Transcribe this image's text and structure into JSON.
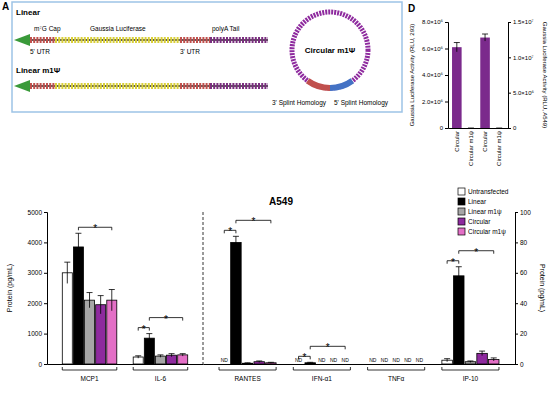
{
  "diagram": {
    "panel": "A",
    "linear_label": "Linear",
    "linear_m1psi_label": "Linear m1Ψ",
    "circular_label": "Circular m1Ψ",
    "cap": "m⁷G Cap",
    "luciferase": "Gaussia Luciferase",
    "polya": "polyA Tail",
    "utr5": "5' UTR",
    "utr3": "3' UTR",
    "splint3": "3' Splint Homology",
    "splint5": "5' Splint Homology"
  },
  "chart_data": [
    {
      "type": "bar",
      "title": "D",
      "categories": [
        "Circular",
        "Circular m1ψ",
        "Circular",
        "Circular m1ψ"
      ],
      "y_label": "Gaussia Luciferase Activity (RLU, 293)",
      "y2_label": "Gaussia Luciferase Activity (RLU, A549)",
      "ylim": [
        0,
        8000000
      ],
      "yticks": [
        0,
        {
          "value": 2000000,
          "label": "2.0×10⁶"
        },
        {
          "value": 4000000,
          "label": "4.0×10⁶"
        },
        {
          "value": 6000000,
          "label": "6.0×10⁶"
        },
        {
          "value": 8000000,
          "label": "8.0×10⁶"
        }
      ],
      "y2lim": [
        0,
        15000000
      ],
      "y2ticks": [
        0,
        {
          "value": 5000000,
          "label": "5.0×10⁶"
        },
        {
          "value": 10000000,
          "label": "1.0×10⁷"
        },
        {
          "value": 15000000,
          "label": "1.5×10⁷"
        }
      ],
      "series": [
        {
          "color": "#7b2a8c",
          "values": [
            6100000,
            0,
            null,
            null
          ],
          "errors": [
            350000,
            0,
            null,
            null
          ]
        },
        {
          "color": "#7b2a8c",
          "axis": "y2",
          "values": [
            null,
            null,
            12800000,
            0
          ],
          "errors": [
            null,
            null,
            500000,
            0
          ]
        }
      ]
    },
    {
      "type": "bar",
      "title": "A549",
      "categories": [
        "MCP1",
        "IL-6"
      ],
      "y_label": "Protein (pg/mL)",
      "ylim": [
        0,
        5000
      ],
      "yticks": [
        0,
        1000,
        2000,
        3000,
        4000,
        5000
      ],
      "series": [
        {
          "color": "#ffffff",
          "values": [
            3000,
            230
          ],
          "errors": [
            350,
            40
          ]
        },
        {
          "color": "#000000",
          "values": [
            3850,
            850
          ],
          "errors": [
            450,
            150
          ]
        },
        {
          "color": "#a6a6a6",
          "values": [
            2100,
            260
          ],
          "errors": [
            250,
            40
          ]
        },
        {
          "color": "#8e2a9e",
          "values": [
            1950,
            290
          ],
          "errors": [
            300,
            50
          ]
        },
        {
          "color": "#e36fc6",
          "values": [
            2100,
            300
          ],
          "errors": [
            350,
            40
          ]
        }
      ],
      "annotations": [
        {
          "text": "*",
          "category": 0,
          "groups": [
            [
              1
            ],
            [
              2,
              3,
              4
            ]
          ]
        },
        {
          "text": "*",
          "category": 1,
          "groups": [
            [
              0
            ],
            [
              1
            ]
          ]
        },
        {
          "text": "*",
          "category": 1,
          "groups": [
            [
              1
            ],
            [
              2,
              3,
              4
            ]
          ]
        }
      ]
    },
    {
      "type": "bar",
      "categories": [
        "RANTES",
        "IFN-α1",
        "TNFα",
        "IP-10"
      ],
      "y_label": "Protein (pg/mL)",
      "ylim": [
        0,
        100
      ],
      "yticks": [
        0,
        20,
        40,
        60,
        80,
        100
      ],
      "legend": "top-right",
      "series": [
        {
          "name": "Untransfected",
          "color": "#ffffff",
          "values": [
            null,
            null,
            null,
            2.5
          ],
          "errors": [
            null,
            null,
            null,
            1
          ],
          "value_labels": [
            "ND",
            "ND",
            "ND",
            null
          ]
        },
        {
          "name": "Linear",
          "color": "#000000",
          "values": [
            80,
            0.8,
            null,
            58
          ],
          "errors": [
            4,
            0.3,
            null,
            6
          ],
          "value_labels": [
            null,
            null,
            "ND",
            null
          ]
        },
        {
          "name": "Linear m1ψ",
          "color": "#a6a6a6",
          "values": [
            0.5,
            null,
            null,
            1.5
          ],
          "errors": [
            0.3,
            null,
            null,
            0.5
          ],
          "value_labels": [
            null,
            "ND",
            "ND",
            null
          ]
        },
        {
          "name": "Circular",
          "color": "#8e2a9e",
          "values": [
            1.5,
            null,
            null,
            7
          ],
          "errors": [
            0.5,
            null,
            null,
            1.5
          ],
          "value_labels": [
            null,
            "ND",
            "ND",
            null
          ]
        },
        {
          "name": "Circular m1ψ",
          "color": "#e36fc6",
          "values": [
            0.8,
            null,
            null,
            3
          ],
          "errors": [
            0.3,
            null,
            null,
            1
          ],
          "value_labels": [
            null,
            "ND",
            "ND",
            null
          ]
        }
      ],
      "annotations": [
        {
          "text": "*",
          "category": 0,
          "groups": [
            [
              0
            ],
            [
              1
            ]
          ]
        },
        {
          "text": "*",
          "category": 0,
          "groups": [
            [
              1
            ],
            [
              2,
              3,
              4
            ]
          ]
        },
        {
          "text": "*",
          "category": 1,
          "groups": [
            [
              0
            ],
            [
              1
            ]
          ]
        },
        {
          "text": "*",
          "category": 1,
          "groups": [
            [
              1
            ],
            [
              2,
              3,
              4
            ]
          ]
        },
        {
          "text": "*",
          "category": 3,
          "groups": [
            [
              0
            ],
            [
              1
            ]
          ]
        },
        {
          "text": "*",
          "category": 3,
          "groups": [
            [
              1
            ],
            [
              2,
              3,
              4
            ]
          ]
        }
      ]
    }
  ]
}
